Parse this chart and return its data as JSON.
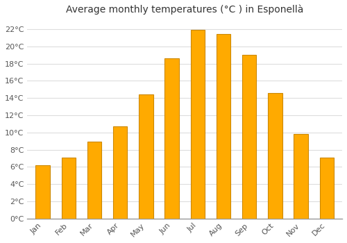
{
  "title": "Average monthly temperatures (°C ) in Esponellà",
  "months": [
    "Jan",
    "Feb",
    "Mar",
    "Apr",
    "May",
    "Jun",
    "Jul",
    "Aug",
    "Sep",
    "Oct",
    "Nov",
    "Dec"
  ],
  "values": [
    6.2,
    7.1,
    8.9,
    10.7,
    14.4,
    18.6,
    21.9,
    21.4,
    19.0,
    14.6,
    9.8,
    7.1
  ],
  "bar_color": "#FFAA00",
  "bar_edge_color": "#CC8800",
  "ylim": [
    0,
    23
  ],
  "yticks": [
    0,
    2,
    4,
    6,
    8,
    10,
    12,
    14,
    16,
    18,
    20,
    22
  ],
  "ytick_labels": [
    "0°C",
    "2°C",
    "4°C",
    "6°C",
    "8°C",
    "10°C",
    "12°C",
    "14°C",
    "16°C",
    "18°C",
    "20°C",
    "22°C"
  ],
  "background_color": "#ffffff",
  "grid_color": "#dddddd",
  "title_fontsize": 10,
  "tick_fontsize": 8,
  "bar_width": 0.55
}
